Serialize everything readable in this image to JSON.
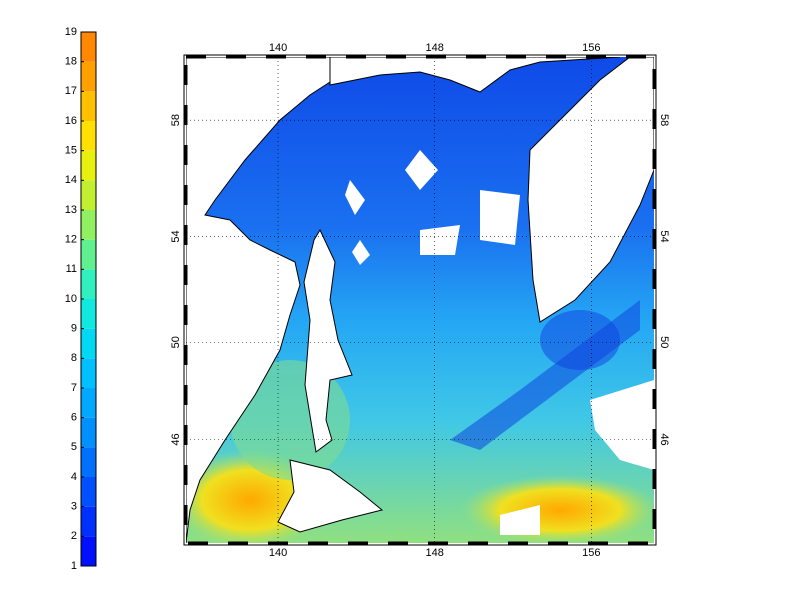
{
  "chart_data": [
    {
      "type": "colorbar",
      "ylim": [
        1,
        19
      ],
      "yticks": [
        1,
        2,
        3,
        4,
        5,
        6,
        7,
        8,
        9,
        10,
        11,
        12,
        13,
        14,
        15,
        16,
        17,
        18,
        19
      ],
      "colors": [
        "#0010ff",
        "#0030ff",
        "#0050ff",
        "#0070ff",
        "#0090ff",
        "#00a8ff",
        "#00c0ff",
        "#00d8f4",
        "#10e8e0",
        "#30f0c0",
        "#60f090",
        "#90f060",
        "#c0f030",
        "#e8f010",
        "#ffe000",
        "#ffc000",
        "#ffa000",
        "#ff8800"
      ]
    },
    {
      "type": "map",
      "projection": "mercator",
      "xlim": [
        135.3,
        159.2
      ],
      "ylim": [
        41.4,
        60
      ],
      "xticks": [
        140,
        148,
        156
      ],
      "yticks": [
        46,
        50,
        54,
        58
      ],
      "grid": true
    }
  ]
}
